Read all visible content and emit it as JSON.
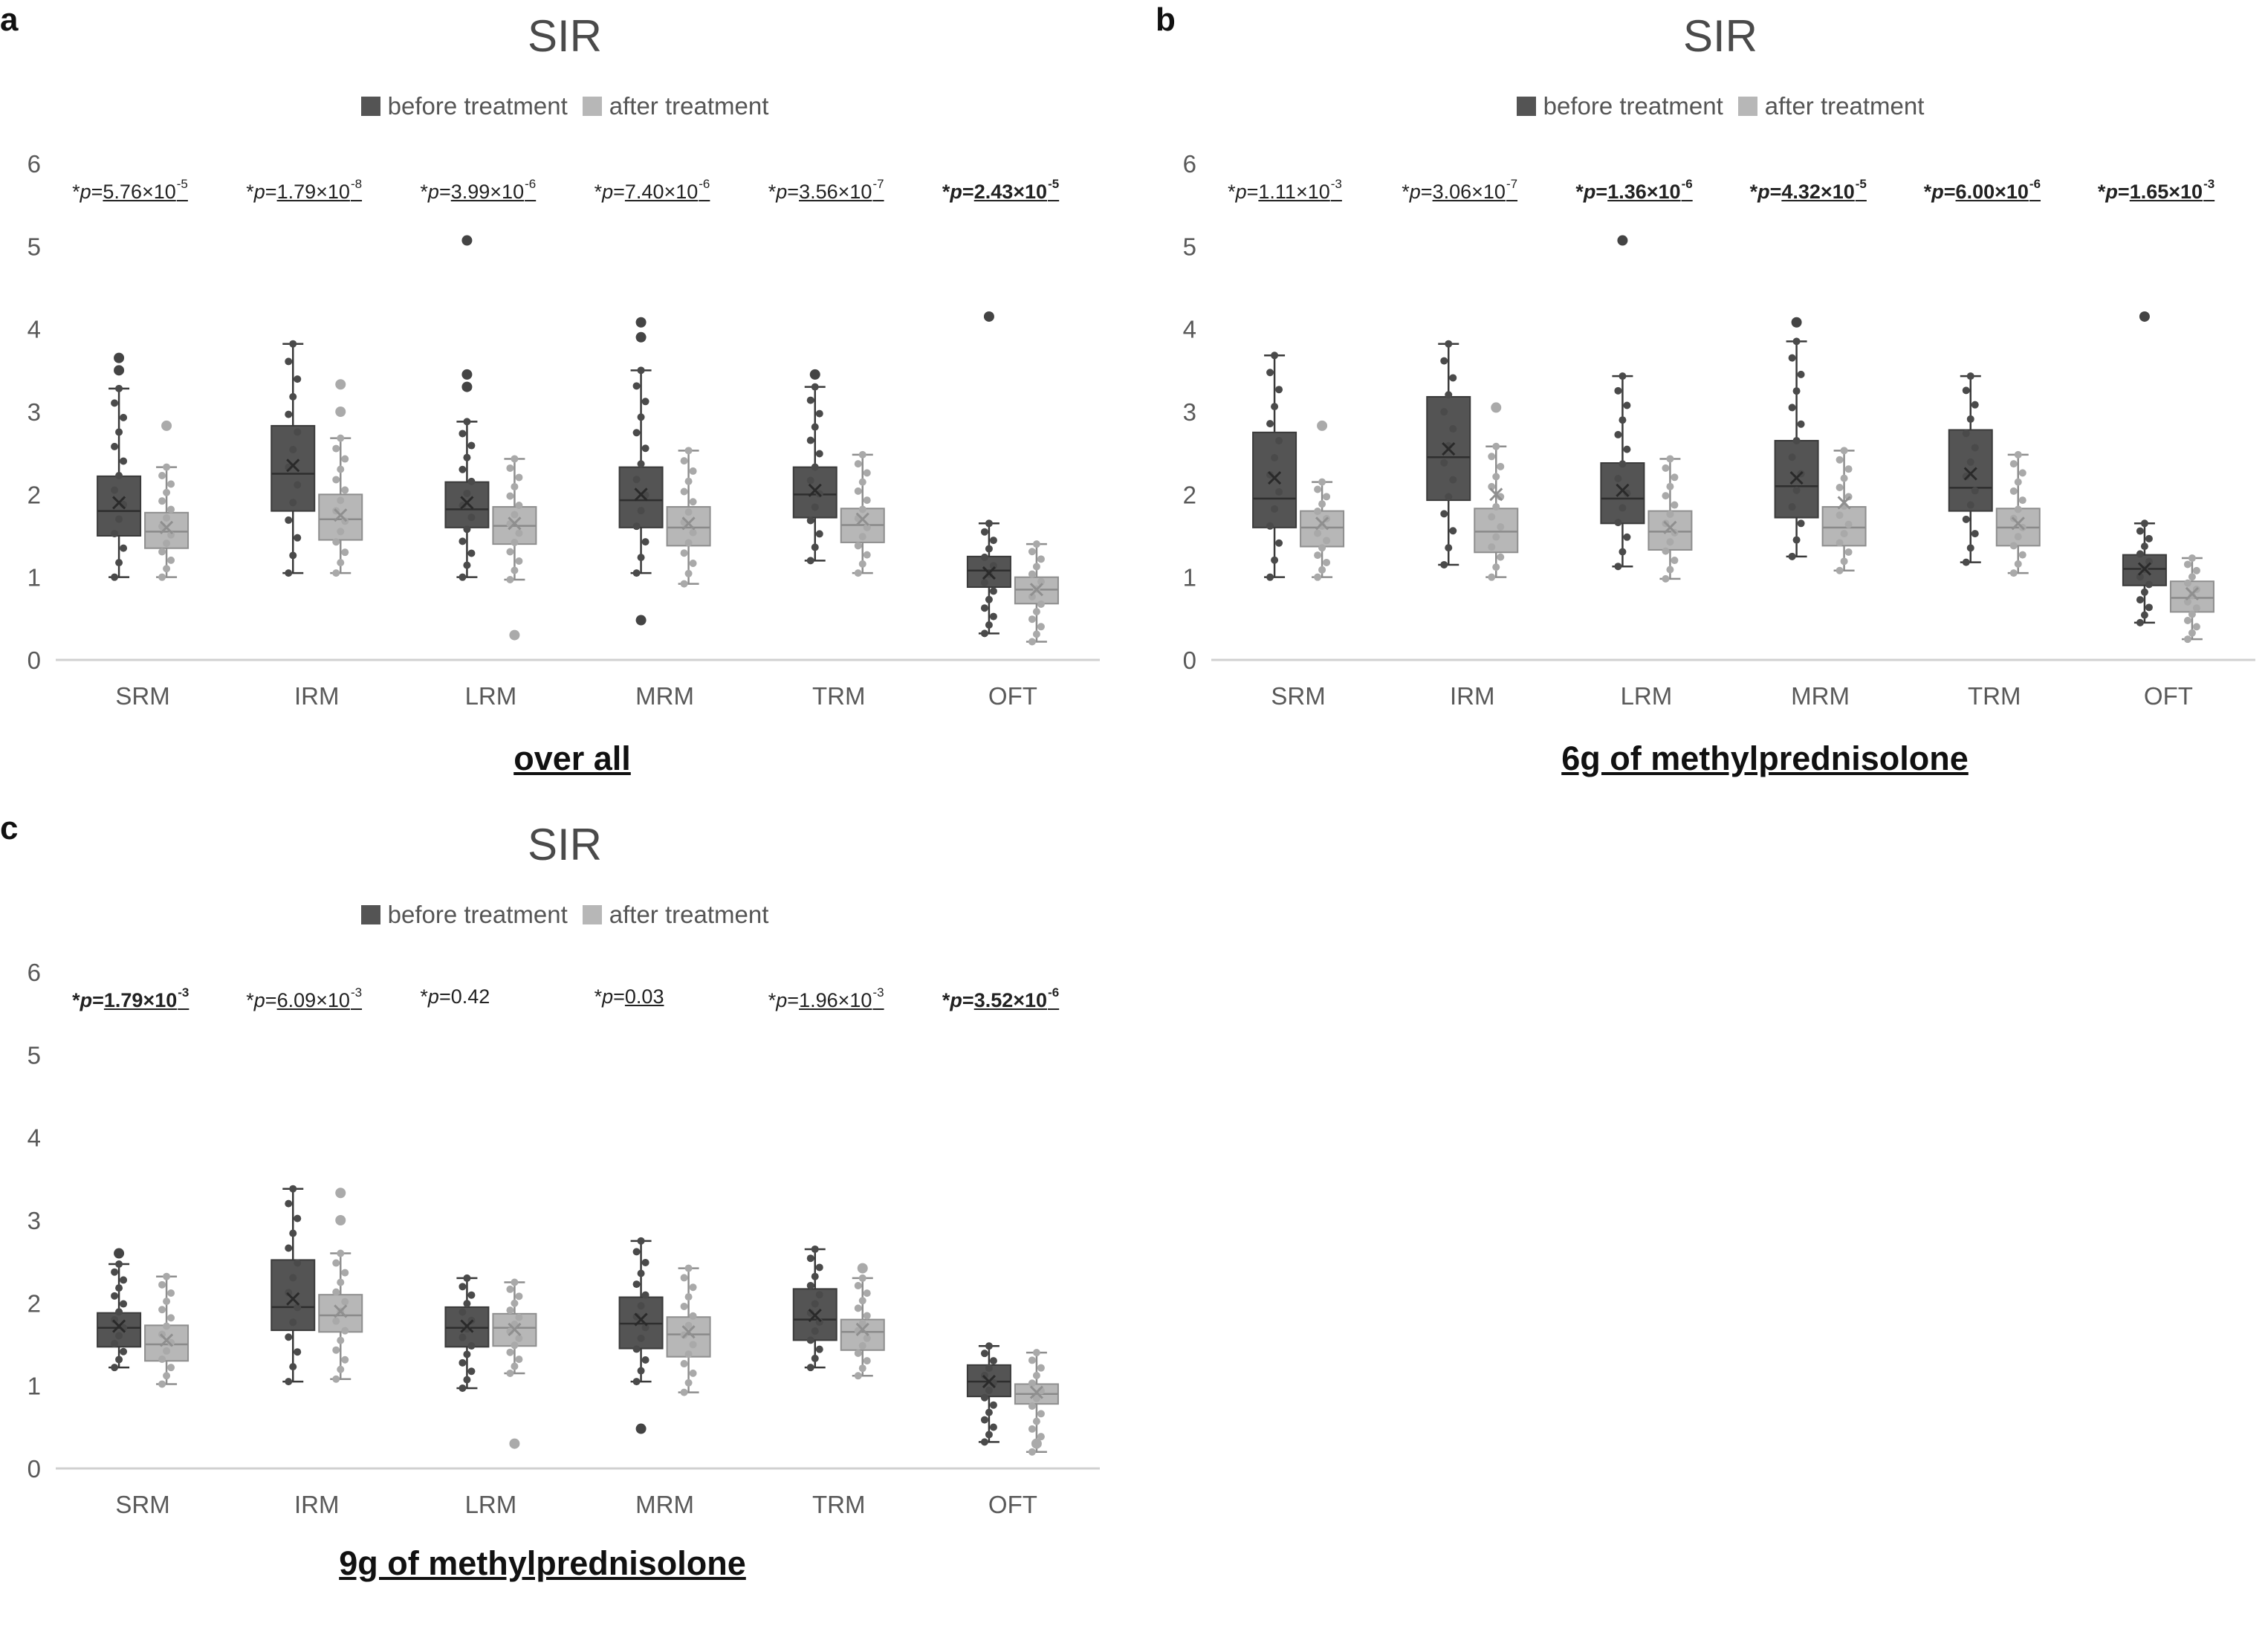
{
  "legend": {
    "before": "before treatment",
    "after": "after treatment"
  },
  "colors": {
    "before": "#545454",
    "after": "#b7b7b7",
    "before_edge": "#3a3a3a",
    "after_edge": "#8e8e8e",
    "axis": "#d0d0d0",
    "text": "#595959"
  },
  "panels": [
    {
      "label": "a",
      "title": "SIR",
      "caption": "over all",
      "pvalues": [
        {
          "text": "5.76×10",
          "exp": "-5",
          "underline": true,
          "bold": false
        },
        {
          "text": "1.79×10",
          "exp": "-8",
          "underline": true,
          "bold": false
        },
        {
          "text": "3.99×10",
          "exp": "-6",
          "underline": true,
          "bold": false
        },
        {
          "text": "7.40×10",
          "exp": "-6",
          "underline": true,
          "bold": false
        },
        {
          "text": "3.56×10",
          "exp": "-7",
          "underline": true,
          "bold": false
        },
        {
          "text": "2.43×10",
          "exp": "-5",
          "underline": true,
          "bold": true
        }
      ]
    },
    {
      "label": "b",
      "title": "SIR",
      "caption": "6g of methylprednisolone",
      "pvalues": [
        {
          "text": "1.11×10",
          "exp": "-3",
          "underline": true,
          "bold": false
        },
        {
          "text": "3.06×10",
          "exp": "-7",
          "underline": true,
          "bold": false
        },
        {
          "text": "1.36×10",
          "exp": "-6",
          "underline": true,
          "bold": true
        },
        {
          "text": "4.32×10",
          "exp": "-5",
          "underline": true,
          "bold": true
        },
        {
          "text": "6.00×10",
          "exp": "-6",
          "underline": true,
          "bold": true
        },
        {
          "text": "1.65×10",
          "exp": "-3",
          "underline": true,
          "bold": true
        }
      ]
    },
    {
      "label": "c",
      "title": "SIR",
      "caption": "9g of methylprednisolone",
      "pvalues": [
        {
          "text": "1.79×10",
          "exp": "-3",
          "underline": true,
          "bold": true
        },
        {
          "text": "6.09×10",
          "exp": "-3",
          "underline": true,
          "bold": false
        },
        {
          "text": "0.42",
          "exp": "",
          "underline": false,
          "bold": false
        },
        {
          "text": "0.03",
          "exp": "",
          "underline": true,
          "bold": false
        },
        {
          "text": "1.96×10",
          "exp": "-3",
          "underline": true,
          "bold": false
        },
        {
          "text": "3.52×10",
          "exp": "-6",
          "underline": true,
          "bold": true
        }
      ]
    }
  ],
  "chart_data": [
    {
      "type": "box",
      "panel": "a",
      "title": "SIR",
      "caption": "over all",
      "categories": [
        "SRM",
        "IRM",
        "LRM",
        "MRM",
        "TRM",
        "OFT"
      ],
      "ylim": [
        0,
        6
      ],
      "yticks": [
        0,
        1,
        2,
        3,
        4,
        5,
        6
      ],
      "series": [
        {
          "name": "before treatment",
          "boxes": [
            {
              "min": 1.0,
              "q1": 1.5,
              "median": 1.8,
              "q3": 2.22,
              "max": 3.28,
              "mean": 1.9,
              "outliers": [
                3.5,
                3.65
              ]
            },
            {
              "min": 1.05,
              "q1": 1.8,
              "median": 2.25,
              "q3": 2.83,
              "max": 3.82,
              "mean": 2.35,
              "outliers": []
            },
            {
              "min": 1.0,
              "q1": 1.6,
              "median": 1.82,
              "q3": 2.15,
              "max": 2.88,
              "mean": 1.9,
              "outliers": [
                3.3,
                3.45,
                5.07
              ]
            },
            {
              "min": 1.05,
              "q1": 1.6,
              "median": 1.93,
              "q3": 2.33,
              "max": 3.5,
              "mean": 2.0,
              "outliers": [
                3.9,
                4.08,
                0.48
              ]
            },
            {
              "min": 1.2,
              "q1": 1.72,
              "median": 2.0,
              "q3": 2.33,
              "max": 3.3,
              "mean": 2.05,
              "outliers": [
                3.45
              ]
            },
            {
              "min": 0.32,
              "q1": 0.88,
              "median": 1.08,
              "q3": 1.25,
              "max": 1.65,
              "mean": 1.05,
              "outliers": [
                4.15
              ]
            }
          ]
        },
        {
          "name": "after treatment",
          "boxes": [
            {
              "min": 1.0,
              "q1": 1.35,
              "median": 1.55,
              "q3": 1.78,
              "max": 2.33,
              "mean": 1.6,
              "outliers": [
                2.83
              ]
            },
            {
              "min": 1.05,
              "q1": 1.45,
              "median": 1.7,
              "q3": 2.0,
              "max": 2.68,
              "mean": 1.75,
              "outliers": [
                3.0,
                3.33
              ]
            },
            {
              "min": 0.97,
              "q1": 1.4,
              "median": 1.62,
              "q3": 1.85,
              "max": 2.43,
              "mean": 1.65,
              "outliers": [
                0.3
              ]
            },
            {
              "min": 0.92,
              "q1": 1.38,
              "median": 1.6,
              "q3": 1.85,
              "max": 2.53,
              "mean": 1.65,
              "outliers": []
            },
            {
              "min": 1.05,
              "q1": 1.42,
              "median": 1.63,
              "q3": 1.83,
              "max": 2.48,
              "mean": 1.7,
              "outliers": []
            },
            {
              "min": 0.22,
              "q1": 0.68,
              "median": 0.85,
              "q3": 1.0,
              "max": 1.4,
              "mean": 0.85,
              "outliers": []
            }
          ]
        }
      ]
    },
    {
      "type": "box",
      "panel": "b",
      "title": "SIR",
      "caption": "6g of methylprednisolone",
      "categories": [
        "SRM",
        "IRM",
        "LRM",
        "MRM",
        "TRM",
        "OFT"
      ],
      "ylim": [
        0,
        6
      ],
      "yticks": [
        0,
        1,
        2,
        3,
        4,
        5,
        6
      ],
      "series": [
        {
          "name": "before treatment",
          "boxes": [
            {
              "min": 1.0,
              "q1": 1.6,
              "median": 1.95,
              "q3": 2.75,
              "max": 3.68,
              "mean": 2.2,
              "outliers": []
            },
            {
              "min": 1.15,
              "q1": 1.93,
              "median": 2.45,
              "q3": 3.18,
              "max": 3.82,
              "mean": 2.55,
              "outliers": []
            },
            {
              "min": 1.13,
              "q1": 1.65,
              "median": 1.95,
              "q3": 2.38,
              "max": 3.43,
              "mean": 2.05,
              "outliers": [
                5.07
              ]
            },
            {
              "min": 1.25,
              "q1": 1.72,
              "median": 2.1,
              "q3": 2.65,
              "max": 3.85,
              "mean": 2.2,
              "outliers": [
                4.08
              ]
            },
            {
              "min": 1.18,
              "q1": 1.8,
              "median": 2.08,
              "q3": 2.78,
              "max": 3.43,
              "mean": 2.25,
              "outliers": []
            },
            {
              "min": 0.45,
              "q1": 0.9,
              "median": 1.1,
              "q3": 1.27,
              "max": 1.65,
              "mean": 1.1,
              "outliers": [
                4.15
              ]
            }
          ]
        },
        {
          "name": "after treatment",
          "boxes": [
            {
              "min": 1.0,
              "q1": 1.37,
              "median": 1.6,
              "q3": 1.8,
              "max": 2.15,
              "mean": 1.65,
              "outliers": [
                2.83
              ]
            },
            {
              "min": 1.0,
              "q1": 1.3,
              "median": 1.55,
              "q3": 1.83,
              "max": 2.58,
              "mean": 2.0,
              "outliers": [
                3.05
              ]
            },
            {
              "min": 0.98,
              "q1": 1.33,
              "median": 1.55,
              "q3": 1.8,
              "max": 2.43,
              "mean": 1.6,
              "outliers": []
            },
            {
              "min": 1.08,
              "q1": 1.38,
              "median": 1.6,
              "q3": 1.85,
              "max": 2.53,
              "mean": 1.9,
              "outliers": []
            },
            {
              "min": 1.05,
              "q1": 1.38,
              "median": 1.6,
              "q3": 1.83,
              "max": 2.48,
              "mean": 1.65,
              "outliers": []
            },
            {
              "min": 0.25,
              "q1": 0.58,
              "median": 0.75,
              "q3": 0.95,
              "max": 1.23,
              "mean": 0.8,
              "outliers": []
            }
          ]
        }
      ]
    },
    {
      "type": "box",
      "panel": "c",
      "title": "SIR",
      "caption": "9g of methylprednisolone",
      "categories": [
        "SRM",
        "IRM",
        "LRM",
        "MRM",
        "TRM",
        "OFT"
      ],
      "ylim": [
        0,
        6
      ],
      "yticks": [
        0,
        1,
        2,
        3,
        4,
        5,
        6
      ],
      "series": [
        {
          "name": "before treatment",
          "boxes": [
            {
              "min": 1.22,
              "q1": 1.47,
              "median": 1.7,
              "q3": 1.88,
              "max": 2.47,
              "mean": 1.72,
              "outliers": [
                2.6
              ]
            },
            {
              "min": 1.05,
              "q1": 1.67,
              "median": 1.95,
              "q3": 2.52,
              "max": 3.38,
              "mean": 2.05,
              "outliers": []
            },
            {
              "min": 0.97,
              "q1": 1.47,
              "median": 1.7,
              "q3": 1.95,
              "max": 2.3,
              "mean": 1.72,
              "outliers": []
            },
            {
              "min": 1.05,
              "q1": 1.45,
              "median": 1.75,
              "q3": 2.07,
              "max": 2.75,
              "mean": 1.8,
              "outliers": [
                0.48
              ]
            },
            {
              "min": 1.22,
              "q1": 1.55,
              "median": 1.8,
              "q3": 2.17,
              "max": 2.65,
              "mean": 1.85,
              "outliers": []
            },
            {
              "min": 0.32,
              "q1": 0.87,
              "median": 1.05,
              "q3": 1.25,
              "max": 1.48,
              "mean": 1.05,
              "outliers": []
            }
          ]
        },
        {
          "name": "after treatment",
          "boxes": [
            {
              "min": 1.02,
              "q1": 1.3,
              "median": 1.5,
              "q3": 1.73,
              "max": 2.32,
              "mean": 1.55,
              "outliers": []
            },
            {
              "min": 1.08,
              "q1": 1.65,
              "median": 1.85,
              "q3": 2.1,
              "max": 2.6,
              "mean": 1.9,
              "outliers": [
                3.0,
                3.33
              ]
            },
            {
              "min": 1.15,
              "q1": 1.48,
              "median": 1.7,
              "q3": 1.87,
              "max": 2.25,
              "mean": 1.68,
              "outliers": [
                0.3
              ]
            },
            {
              "min": 0.92,
              "q1": 1.35,
              "median": 1.62,
              "q3": 1.83,
              "max": 2.42,
              "mean": 1.65,
              "outliers": []
            },
            {
              "min": 1.12,
              "q1": 1.43,
              "median": 1.65,
              "q3": 1.8,
              "max": 2.3,
              "mean": 1.68,
              "outliers": [
                2.42
              ]
            },
            {
              "min": 0.2,
              "q1": 0.78,
              "median": 0.9,
              "q3": 1.02,
              "max": 1.4,
              "mean": 0.92,
              "outliers": [
                0.3
              ]
            }
          ]
        }
      ]
    }
  ]
}
